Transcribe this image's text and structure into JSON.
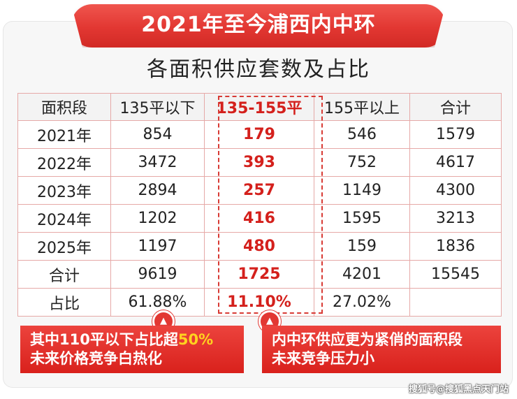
{
  "banner_title": "2021年至今浦西内中环",
  "table_title": "各面积供应套数及占比",
  "table": {
    "headers": [
      "面积段",
      "135平以下",
      "135-155平",
      "155平以上",
      "合计"
    ],
    "rows": [
      [
        "2021年",
        "854",
        "179",
        "546",
        "1579"
      ],
      [
        "2022年",
        "3472",
        "393",
        "752",
        "4617"
      ],
      [
        "2023年",
        "2894",
        "257",
        "1149",
        "4300"
      ],
      [
        "2024年",
        "1202",
        "416",
        "1595",
        "3213"
      ],
      [
        "2025年",
        "1197",
        "480",
        "159",
        "1836"
      ],
      [
        "合计",
        "9619",
        "1725",
        "4201",
        "15545"
      ],
      [
        "占比",
        "61.88%",
        "11.10%",
        "27.02%",
        ""
      ]
    ]
  },
  "callouts": {
    "left": {
      "line1_prefix": "其中110平以下占比超",
      "line1_accent": "50%",
      "line2": "未来价格竞争白热化"
    },
    "right": {
      "line1": "内中环供应更为紧俏的面积段",
      "line2": "未来竞争压力小"
    }
  },
  "watermark": "搜狐号@搜狐黑点天门站",
  "colors": {
    "accent_red": "#d4201c",
    "banner_red": "#e23732",
    "highlight_yellow": "#ffd21f"
  },
  "icons": {
    "marker": "triangle-up-icon"
  }
}
